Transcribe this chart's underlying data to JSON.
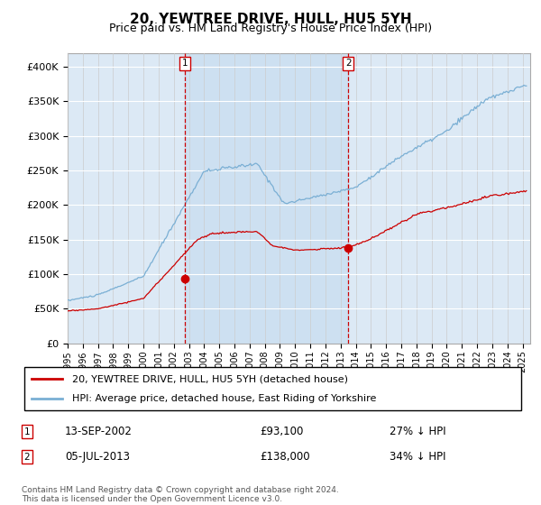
{
  "title": "20, YEWTREE DRIVE, HULL, HU5 5YH",
  "subtitle": "Price paid vs. HM Land Registry's House Price Index (HPI)",
  "ylabel_ticks": [
    "£0",
    "£50K",
    "£100K",
    "£150K",
    "£200K",
    "£250K",
    "£300K",
    "£350K",
    "£400K"
  ],
  "ytick_values": [
    0,
    50000,
    100000,
    150000,
    200000,
    250000,
    300000,
    350000,
    400000
  ],
  "ylim": [
    0,
    420000
  ],
  "xlim_start": 1995.0,
  "xlim_end": 2025.5,
  "bg_color": "#dce9f5",
  "shade_color": "#c8ddf0",
  "grid_color": "#cccccc",
  "red_line_color": "#cc0000",
  "blue_line_color": "#7aafd4",
  "sale1_x": 2002.71,
  "sale1_y": 93100,
  "sale1_label": "1",
  "sale2_x": 2013.5,
  "sale2_y": 138000,
  "sale2_label": "2",
  "legend_line1": "20, YEWTREE DRIVE, HULL, HU5 5YH (detached house)",
  "legend_line2": "HPI: Average price, detached house, East Riding of Yorkshire",
  "annotation1_box": "1",
  "annotation1_date": "13-SEP-2002",
  "annotation1_price": "£93,100",
  "annotation1_pct": "27% ↓ HPI",
  "annotation2_box": "2",
  "annotation2_date": "05-JUL-2013",
  "annotation2_price": "£138,000",
  "annotation2_pct": "34% ↓ HPI",
  "footer": "Contains HM Land Registry data © Crown copyright and database right 2024.\nThis data is licensed under the Open Government Licence v3.0."
}
